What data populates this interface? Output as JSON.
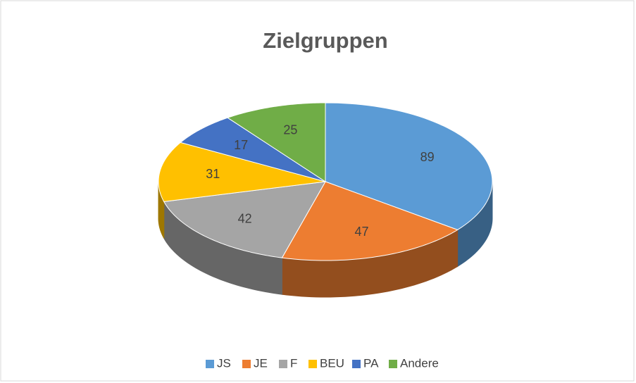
{
  "chart_data": {
    "type": "pie",
    "title": "Zielgruppen",
    "categories": [
      "JS",
      "JE",
      "F",
      "BEU",
      "PA",
      "Andere"
    ],
    "values": [
      89,
      47,
      42,
      31,
      17,
      25
    ],
    "colors": [
      "#5b9bd5",
      "#ed7d31",
      "#a5a5a5",
      "#ffc000",
      "#4472c4",
      "#70ad47"
    ],
    "legend": "bottom"
  }
}
